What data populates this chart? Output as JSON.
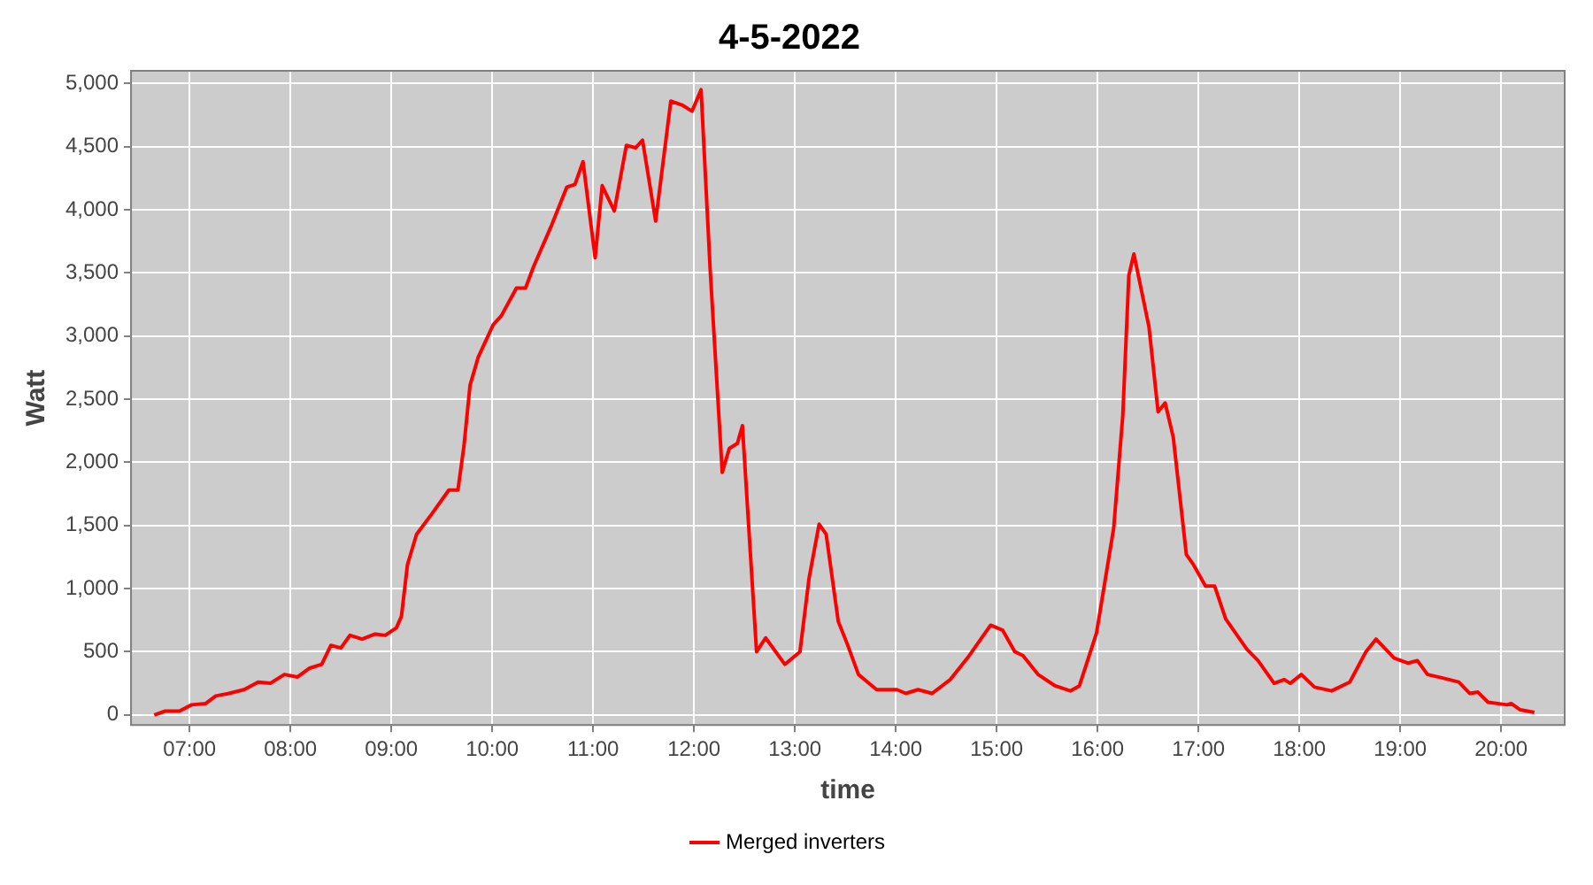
{
  "chart_data": {
    "type": "line",
    "title": "4-5-2022",
    "xlabel": "time",
    "ylabel": "Watt",
    "x": [
      6.65,
      6.76,
      6.9,
      7.02,
      7.16,
      7.26,
      7.39,
      7.54,
      7.68,
      7.8,
      7.94,
      8.07,
      8.19,
      8.31,
      8.4,
      8.5,
      8.59,
      8.71,
      8.84,
      8.94,
      9.05,
      9.1,
      9.16,
      9.25,
      9.4,
      9.57,
      9.66,
      9.72,
      9.78,
      9.86,
      10.01,
      10.09,
      10.24,
      10.33,
      10.41,
      10.59,
      10.74,
      10.82,
      10.9,
      11.02,
      11.09,
      11.21,
      11.33,
      11.42,
      11.49,
      11.62,
      11.77,
      11.88,
      11.98,
      12.07,
      12.16,
      12.28,
      12.35,
      12.43,
      12.48,
      12.55,
      12.62,
      12.71,
      12.9,
      13.05,
      13.14,
      13.24,
      13.31,
      13.43,
      13.52,
      13.63,
      13.81,
      14.01,
      14.1,
      14.22,
      14.36,
      14.54,
      14.71,
      14.94,
      15.06,
      15.18,
      15.26,
      15.41,
      15.58,
      15.73,
      15.82,
      15.99,
      16.16,
      16.25,
      16.31,
      16.36,
      16.43,
      16.51,
      16.6,
      16.67,
      16.75,
      16.88,
      16.95,
      17.07,
      17.16,
      17.27,
      17.48,
      17.59,
      17.75,
      17.85,
      17.91,
      18.02,
      18.15,
      18.32,
      18.5,
      18.66,
      18.76,
      18.94,
      19.08,
      19.17,
      19.27,
      19.43,
      19.58,
      19.69,
      19.77,
      19.87,
      20.06,
      20.1,
      20.19,
      20.33
    ],
    "series": [
      {
        "name": "Merged inverters",
        "color": "#ff0000",
        "values": [
          0,
          30,
          30,
          80,
          90,
          150,
          170,
          200,
          260,
          250,
          320,
          300,
          370,
          400,
          550,
          530,
          630,
          600,
          640,
          630,
          690,
          780,
          1190,
          1430,
          1590,
          1780,
          1780,
          2130,
          2610,
          2830,
          3090,
          3160,
          3380,
          3380,
          3550,
          3880,
          4180,
          4200,
          4380,
          3620,
          4190,
          3990,
          4510,
          4490,
          4550,
          3910,
          4860,
          4830,
          4780,
          4950,
          3530,
          1920,
          2110,
          2150,
          2290,
          1390,
          500,
          610,
          400,
          500,
          1080,
          1510,
          1430,
          740,
          560,
          320,
          200,
          200,
          170,
          200,
          170,
          280,
          450,
          710,
          670,
          500,
          470,
          320,
          230,
          190,
          230,
          650,
          1480,
          2370,
          3480,
          3650,
          3380,
          3070,
          2400,
          2470,
          2200,
          1270,
          1190,
          1020,
          1020,
          760,
          520,
          430,
          250,
          280,
          250,
          320,
          220,
          190,
          260,
          500,
          600,
          450,
          410,
          430,
          320,
          290,
          260,
          170,
          180,
          100,
          80,
          90,
          40,
          20
        ]
      }
    ],
    "xlim": [
      6.42,
      20.63
    ],
    "xticks": [
      {
        "value": 7,
        "label": "07:00"
      },
      {
        "value": 8,
        "label": "08:00"
      },
      {
        "value": 9,
        "label": "09:00"
      },
      {
        "value": 10,
        "label": "10:00"
      },
      {
        "value": 11,
        "label": "11:00"
      },
      {
        "value": 12,
        "label": "12:00"
      },
      {
        "value": 13,
        "label": "13:00"
      },
      {
        "value": 14,
        "label": "14:00"
      },
      {
        "value": 15,
        "label": "15:00"
      },
      {
        "value": 16,
        "label": "16:00"
      },
      {
        "value": 17,
        "label": "17:00"
      },
      {
        "value": 18,
        "label": "18:00"
      },
      {
        "value": 19,
        "label": "19:00"
      },
      {
        "value": 20,
        "label": "20:00"
      }
    ],
    "ylim": [
      -80,
      5100
    ],
    "yticks": [
      0,
      500,
      {
        "value": 1000,
        "label": "1,000"
      },
      {
        "value": 1500,
        "label": "1,500"
      },
      {
        "value": 2000,
        "label": "2,000"
      },
      {
        "value": 2500,
        "label": "2,500"
      },
      {
        "value": 3000,
        "label": "3,000"
      },
      {
        "value": 3500,
        "label": "3,500"
      },
      {
        "value": 4000,
        "label": "4,000"
      },
      {
        "value": 4500,
        "label": "4,500"
      },
      {
        "value": 5000,
        "label": "5,000"
      }
    ],
    "grid": true,
    "legend": "bottom"
  }
}
